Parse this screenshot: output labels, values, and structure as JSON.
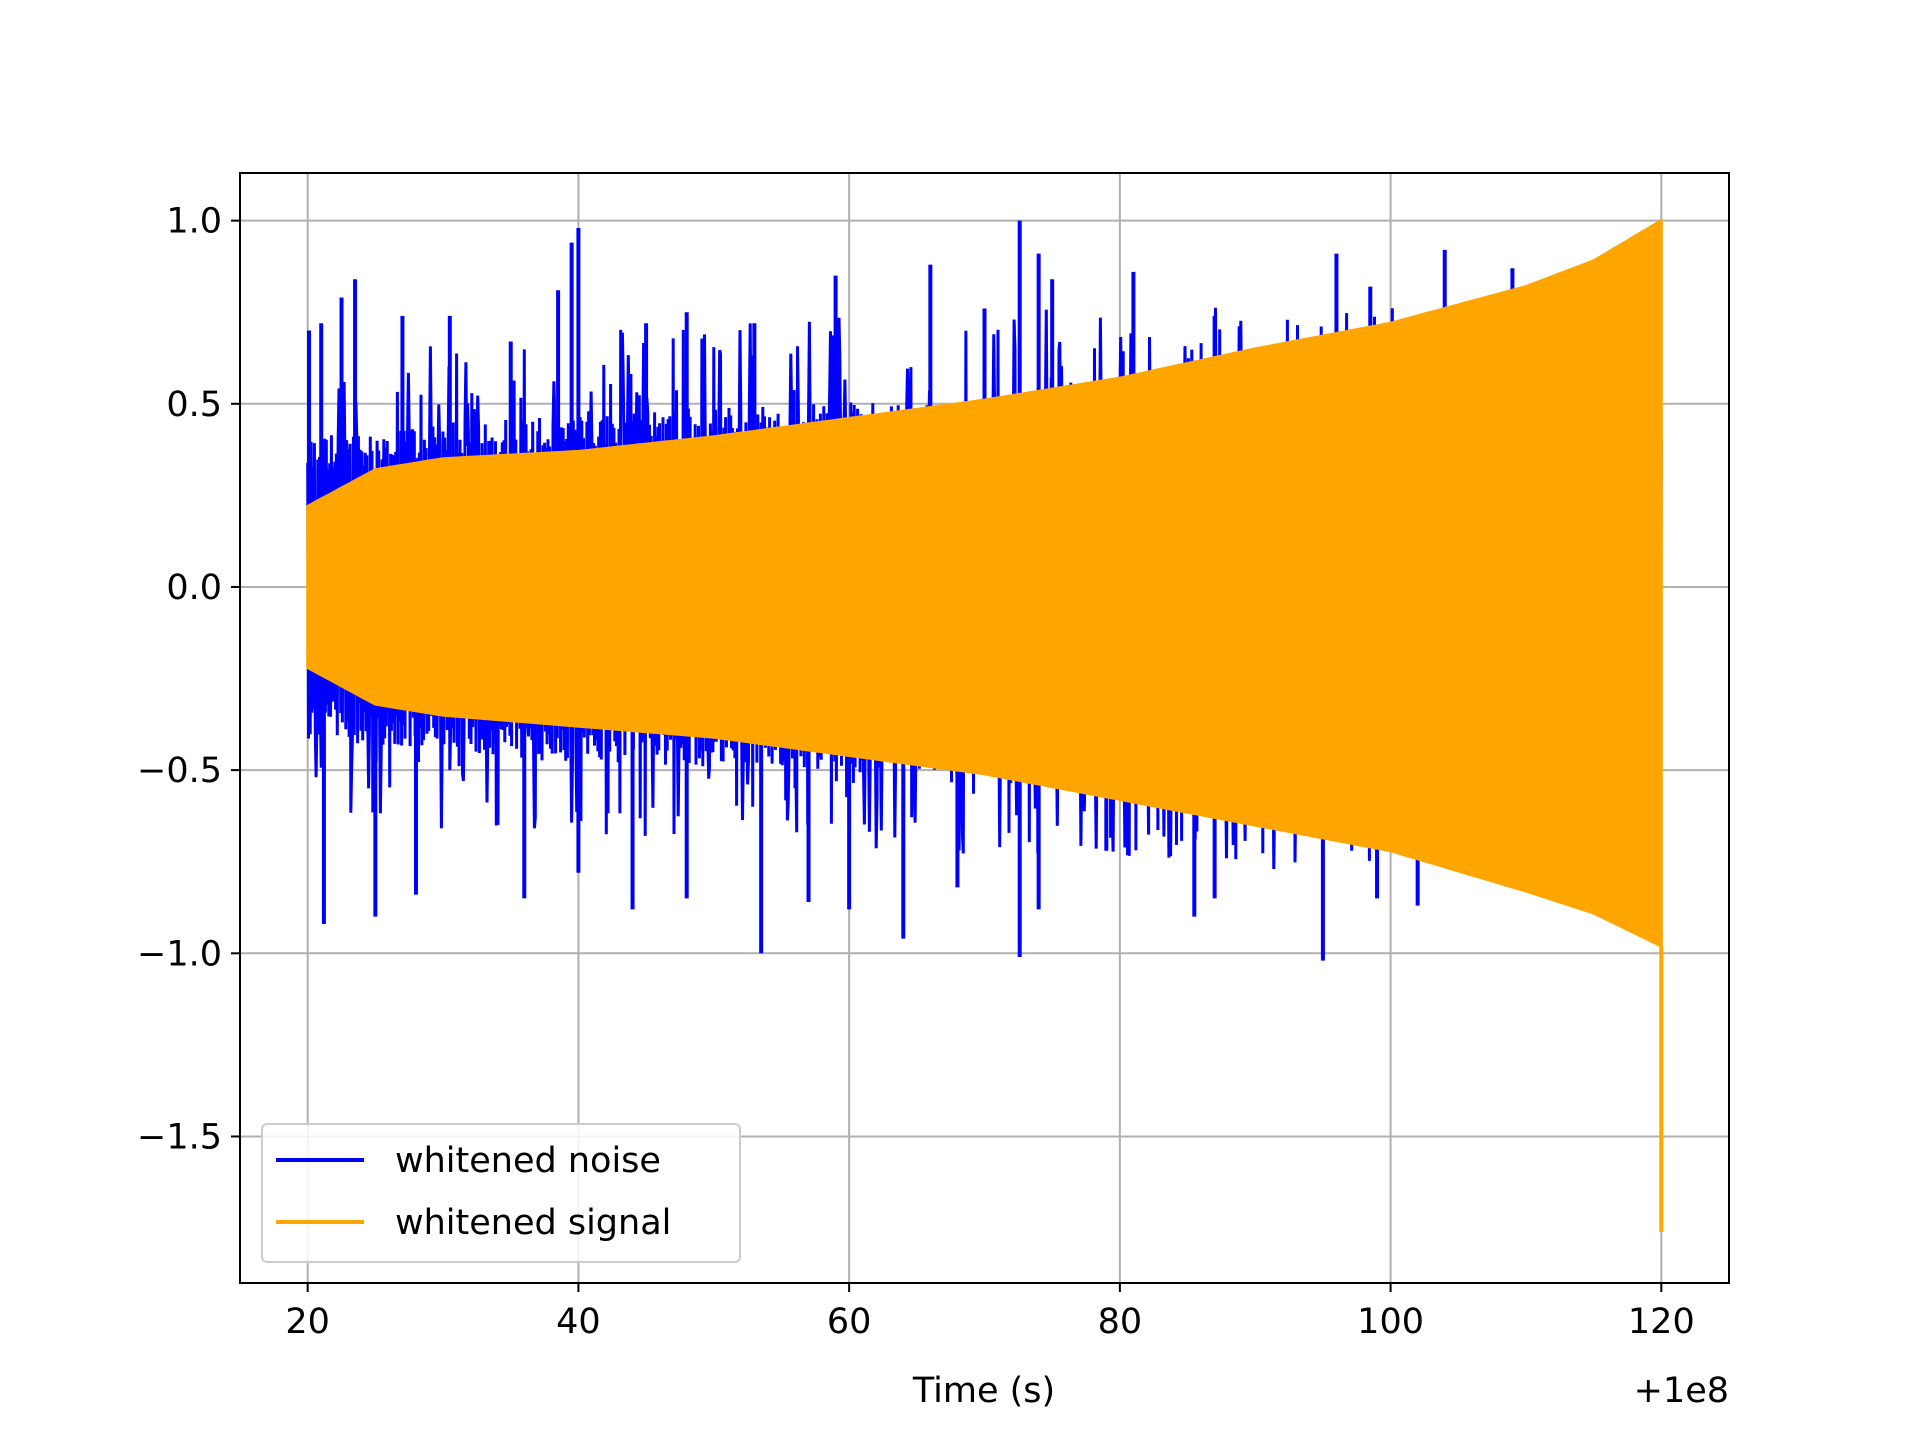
{
  "chart_data": {
    "type": "line",
    "title": "",
    "xlabel": "Time (s)",
    "ylabel": "",
    "x_offset_label": "+1e8",
    "xlim": [
      15,
      125
    ],
    "ylim": [
      -1.9,
      1.13
    ],
    "x_ticks": [
      20,
      40,
      60,
      80,
      100,
      120
    ],
    "x_tick_labels": [
      "20",
      "40",
      "60",
      "80",
      "100",
      "120"
    ],
    "y_ticks": [
      -1.5,
      -1.0,
      -0.5,
      0.0,
      0.5,
      1.0
    ],
    "y_tick_labels": [
      "−1.5",
      "−1.0",
      "−0.5",
      "0.0",
      "0.5",
      "1.0"
    ],
    "grid": true,
    "legend_position": "lower-left",
    "series": [
      {
        "name": "whitened noise",
        "color": "#0000ff",
        "x_range": [
          20,
          120
        ],
        "bulk_envelope": {
          "x": [
            20,
            40,
            60,
            80,
            100,
            120
          ],
          "upper": [
            0.36,
            0.42,
            0.44,
            0.45,
            0.46,
            0.47
          ],
          "lower": [
            -0.36,
            -0.42,
            -0.44,
            -0.45,
            -0.46,
            -0.47
          ]
        },
        "peaks": [
          {
            "x": 20.1,
            "y": 0.7
          },
          {
            "x": 21.0,
            "y": 0.72
          },
          {
            "x": 22.5,
            "y": 0.79
          },
          {
            "x": 23.5,
            "y": 0.84
          },
          {
            "x": 27.0,
            "y": 0.74
          },
          {
            "x": 30.5,
            "y": 0.74
          },
          {
            "x": 35.0,
            "y": 0.67
          },
          {
            "x": 38.5,
            "y": 0.81
          },
          {
            "x": 39.5,
            "y": 0.94
          },
          {
            "x": 40.0,
            "y": 0.98
          },
          {
            "x": 45.0,
            "y": 0.72
          },
          {
            "x": 48.0,
            "y": 0.75
          },
          {
            "x": 53.0,
            "y": 0.72
          },
          {
            "x": 59.0,
            "y": 0.85
          },
          {
            "x": 66.0,
            "y": 0.88
          },
          {
            "x": 70.0,
            "y": 0.76
          },
          {
            "x": 72.6,
            "y": 1.0
          },
          {
            "x": 74.0,
            "y": 0.91
          },
          {
            "x": 75.0,
            "y": 0.84
          },
          {
            "x": 81.0,
            "y": 0.86
          },
          {
            "x": 87.0,
            "y": 0.74
          },
          {
            "x": 96.0,
            "y": 0.91
          },
          {
            "x": 98.5,
            "y": 0.82
          },
          {
            "x": 104.0,
            "y": 0.92
          },
          {
            "x": 109.0,
            "y": 0.87
          },
          {
            "x": 21.2,
            "y": -0.92
          },
          {
            "x": 25.0,
            "y": -0.9
          },
          {
            "x": 28.0,
            "y": -0.84
          },
          {
            "x": 36.0,
            "y": -0.85
          },
          {
            "x": 40.0,
            "y": -0.78
          },
          {
            "x": 44.0,
            "y": -0.88
          },
          {
            "x": 48.0,
            "y": -0.85
          },
          {
            "x": 53.5,
            "y": -1.0
          },
          {
            "x": 57.0,
            "y": -0.86
          },
          {
            "x": 60.0,
            "y": -0.88
          },
          {
            "x": 64.0,
            "y": -0.96
          },
          {
            "x": 68.0,
            "y": -0.82
          },
          {
            "x": 72.6,
            "y": -1.01
          },
          {
            "x": 74.0,
            "y": -0.88
          },
          {
            "x": 79.0,
            "y": -0.72
          },
          {
            "x": 85.5,
            "y": -0.9
          },
          {
            "x": 87.0,
            "y": -0.85
          },
          {
            "x": 95.0,
            "y": -1.02
          },
          {
            "x": 99.0,
            "y": -0.85
          },
          {
            "x": 102.0,
            "y": -0.87
          }
        ]
      },
      {
        "name": "whitened signal",
        "color": "#ffa500",
        "x_range": [
          20,
          120
        ],
        "envelope": {
          "x": [
            20,
            25,
            30,
            40,
            50,
            60,
            70,
            80,
            90,
            100,
            110,
            115,
            120
          ],
          "upper": [
            0.22,
            0.32,
            0.35,
            0.37,
            0.41,
            0.46,
            0.51,
            0.57,
            0.65,
            0.72,
            0.82,
            0.89,
            1.0
          ],
          "lower": [
            -0.22,
            -0.32,
            -0.35,
            -0.38,
            -0.41,
            -0.46,
            -0.51,
            -0.58,
            -0.65,
            -0.72,
            -0.83,
            -0.89,
            -0.98
          ]
        },
        "end_spike": {
          "x": 120.0,
          "y": -1.76
        }
      }
    ]
  }
}
